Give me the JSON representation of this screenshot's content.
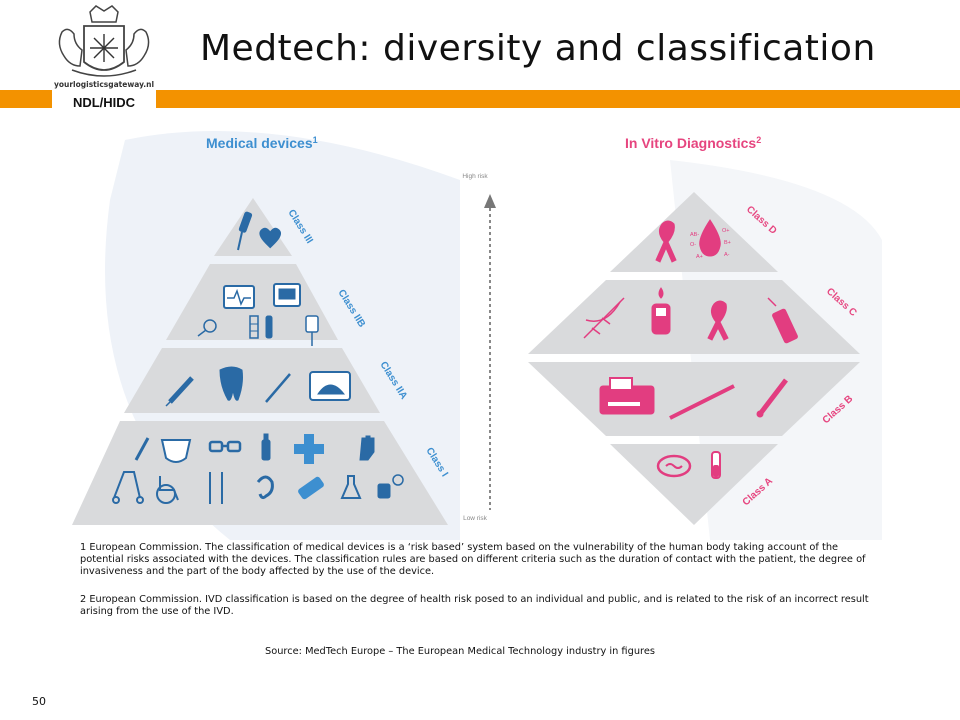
{
  "header": {
    "title": "Medtech: diversity and classification",
    "logo_text": "yourlogisticsgateway.nl",
    "badge": "NDL/HIDC",
    "accent": "#f39200"
  },
  "diagram": {
    "left_heading": "Medical devices",
    "left_heading_sup": "1",
    "right_heading": "In Vitro Diagnostics",
    "right_heading_sup": "2",
    "risk_high": "High risk",
    "risk_low": "Low risk",
    "left_classes": [
      "Class III",
      "Class IIB",
      "Class IIA",
      "Class I"
    ],
    "right_classes": [
      "Class D",
      "Class C",
      "Class B",
      "Class A"
    ],
    "blood_labels": [
      "AB-",
      "O+",
      "O-",
      "B+",
      "A+",
      "A-"
    ],
    "colors": {
      "blue": "#2a6aa5",
      "pink": "#e23d80",
      "tier": "#d9dadc",
      "heading_blue": "#3d8fd0",
      "heading_pink": "#e6457f"
    },
    "left_icons": [
      [
        "prosthetic-leg-icon",
        "pacemaker-heart-icon"
      ],
      [
        "ecg-monitor-icon",
        "infusion-monitor-icon",
        "contact-lens-icon",
        "stent-icon",
        "implant-icon",
        "iv-bag-icon"
      ],
      [
        "syringe-icon",
        "tooth-icon",
        "scalpel-icon",
        "ultrasound-icon"
      ],
      [
        "thermometer-icon",
        "diaper-icon",
        "glasses-icon",
        "spray-bottle-icon",
        "cross-icon",
        "glove-icon",
        "rollator-icon",
        "wheelchair-icon",
        "crutches-icon",
        "hearing-aid-icon",
        "bandage-icon",
        "flask-icon",
        "blood-pressure-icon"
      ]
    ],
    "right_icons": [
      [
        "awareness-ribbon-icon",
        "blood-drop-icon"
      ],
      [
        "dna-icon",
        "glucose-meter-icon",
        "awareness-ribbon-icon",
        "test-strip-icon"
      ],
      [
        "analyzer-icon",
        "pipette-icon",
        "thermometer-icon"
      ],
      [
        "petri-dish-icon",
        "test-tube-icon"
      ]
    ]
  },
  "footnotes": [
    "1 European Commission. The classification of medical devices is a ‘risk based’ system based on the vulnerability of the human body taking account of the potential risks associated with the devices. The classification rules are based on different criteria such as the duration of contact with the patient, the degree of invasiveness and the part of the body affected by the use of the device.",
    "2 European Commission. IVD classification is based on the degree of health risk posed to an individual and public, and is related to the risk of an incorrect result arising from the use of the IVD."
  ],
  "source": "Source: MedTech Europe – The European Medical Technology industry in figures",
  "page_number": "50"
}
